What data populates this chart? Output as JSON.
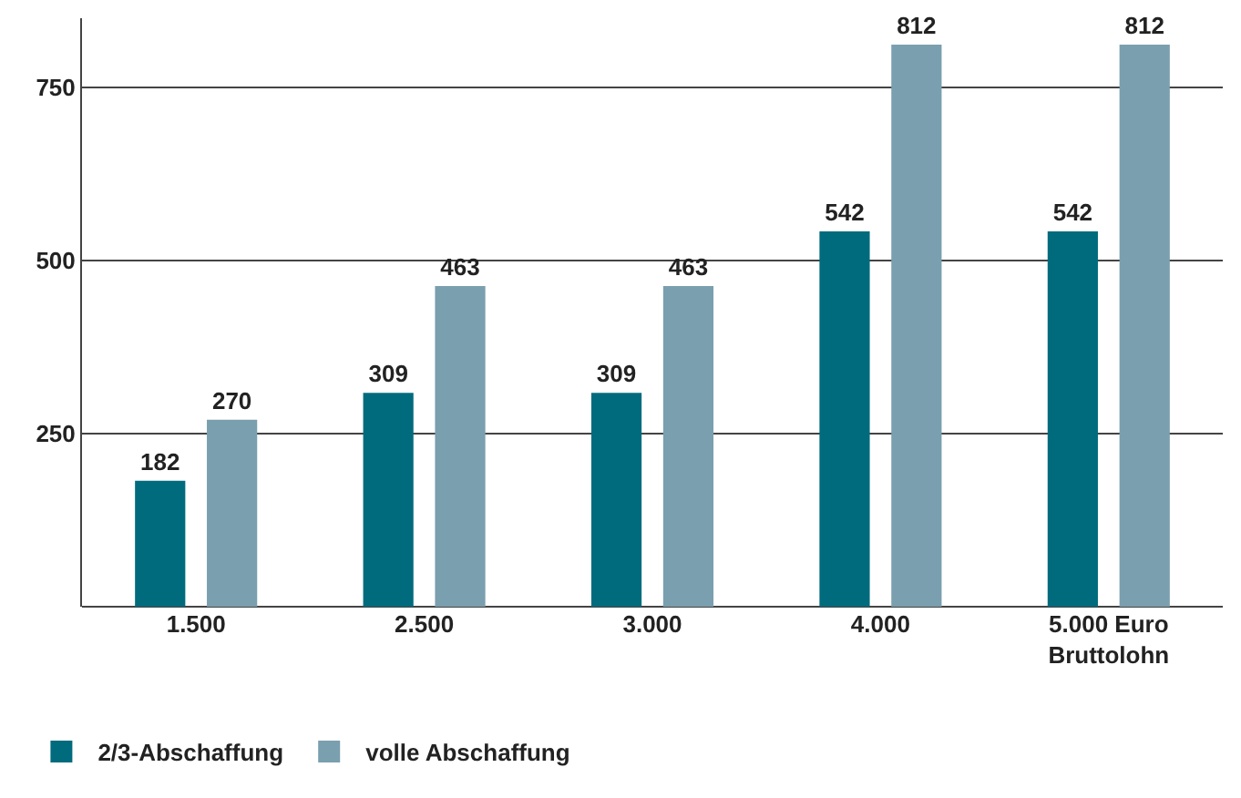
{
  "chart_data": {
    "type": "bar",
    "categories": [
      "1.500",
      "2.500",
      "3.000",
      "4.000",
      "5.000 Euro\nBruttolohn"
    ],
    "series": [
      {
        "name": "2/3-Abschaffung",
        "color": "#006b7d",
        "values": [
          182,
          309,
          309,
          542,
          542
        ]
      },
      {
        "name": "volle Abschaffung",
        "color": "#7a9fae",
        "values": [
          270,
          463,
          463,
          812,
          812
        ]
      }
    ],
    "ylim": [
      0,
      850
    ],
    "yticks": [
      {
        "value": 0,
        "label": null
      },
      250,
      500,
      750
    ],
    "grid": "y",
    "legend": "bottom left",
    "data_labels": true
  }
}
